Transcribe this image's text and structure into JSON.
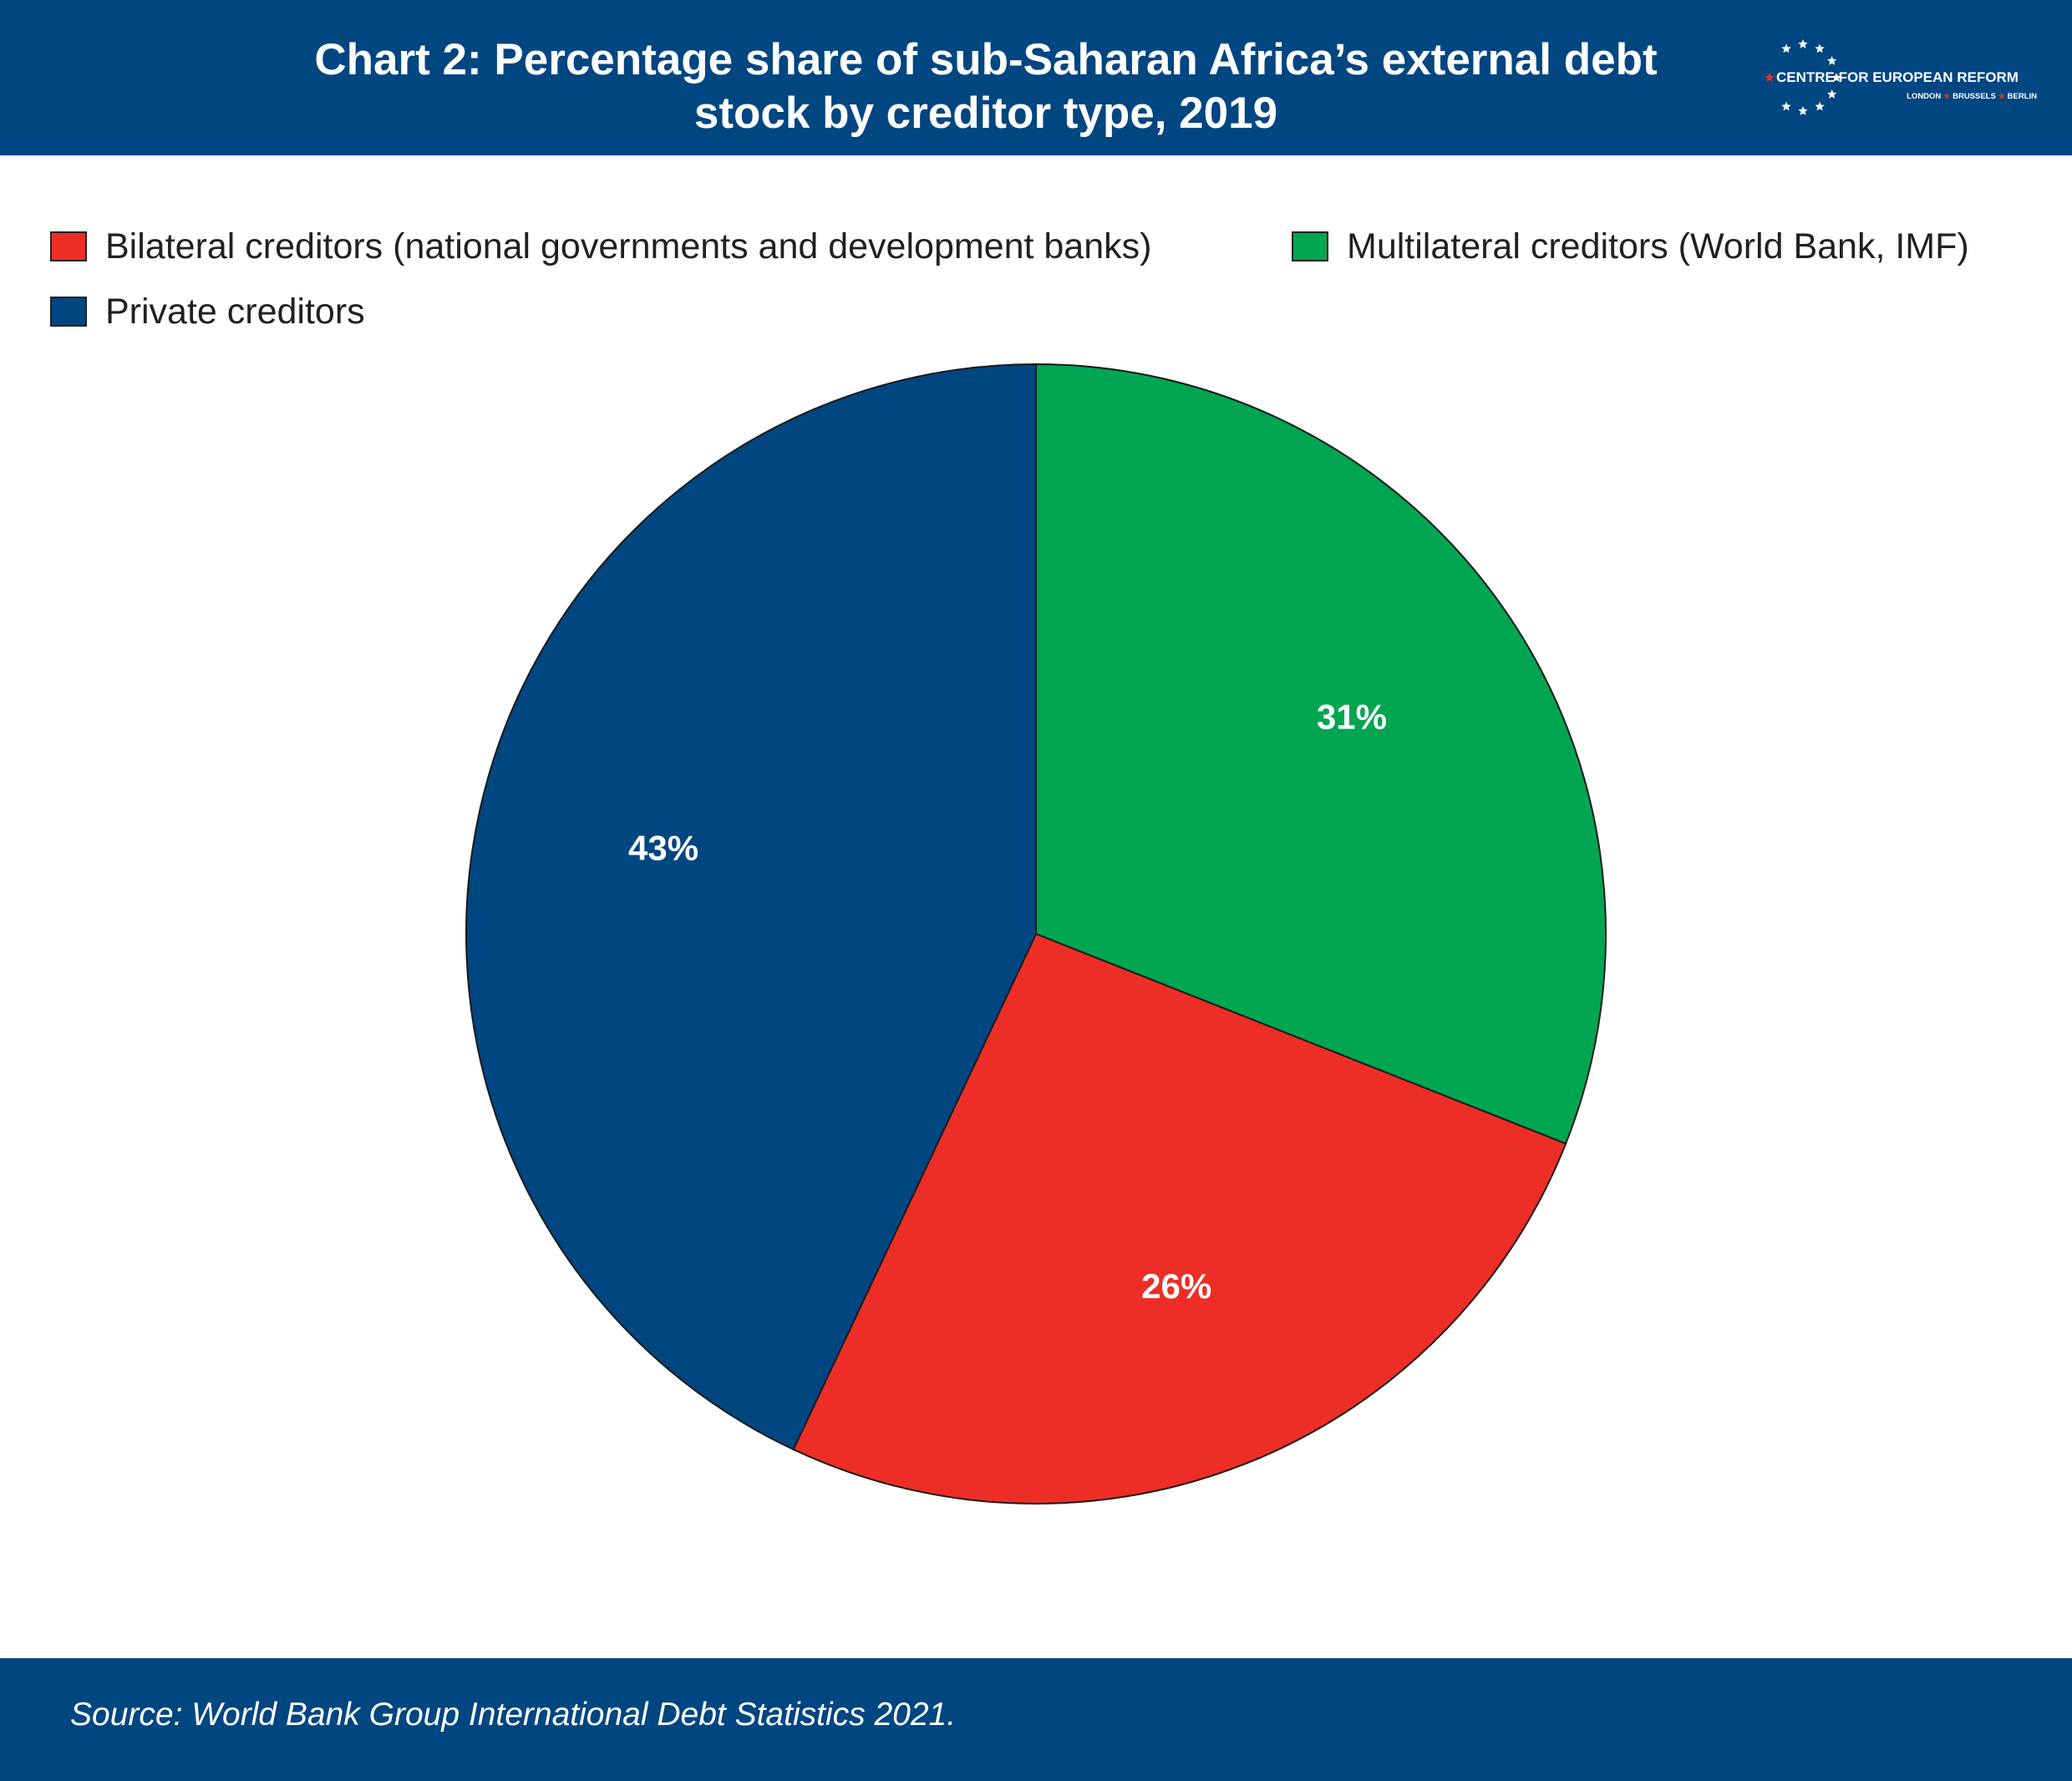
{
  "title": {
    "line1": "Chart 2: Percentage share of sub-Saharan Africa’s external debt",
    "line2": "stock by creditor type, 2019"
  },
  "logo": {
    "name": "CENTRE FOR EUROPEAN REFORM",
    "cities": [
      "LONDON",
      "BRUSSELS",
      "BERLIN"
    ]
  },
  "colors": {
    "bilateral": "#ed2e26",
    "multilateral": "#00a551",
    "private": "#004680",
    "header": "#004680"
  },
  "legend": {
    "bilateral": "Bilateral creditors (national governments and development banks)",
    "multilateral": "Multilateral creditors (World Bank, IMF)",
    "private": "Private creditors"
  },
  "chart_data": {
    "type": "pie",
    "title": "Chart 2: Percentage share of sub-Saharan Africa’s external debt stock by creditor type, 2019",
    "series": [
      {
        "name": "Multilateral creditors (World Bank, IMF)",
        "value": 31,
        "label": "31%",
        "color": "#00a551"
      },
      {
        "name": "Bilateral creditors (national governments and development banks)",
        "value": 26,
        "label": "26%",
        "color": "#ed2e26"
      },
      {
        "name": "Private creditors",
        "value": 43,
        "label": "43%",
        "color": "#004680"
      }
    ],
    "start": "12 o'clock",
    "direction": "clockwise",
    "legend_position": "top"
  },
  "footer": {
    "source": "Source: World Bank Group International Debt Statistics 2021."
  }
}
